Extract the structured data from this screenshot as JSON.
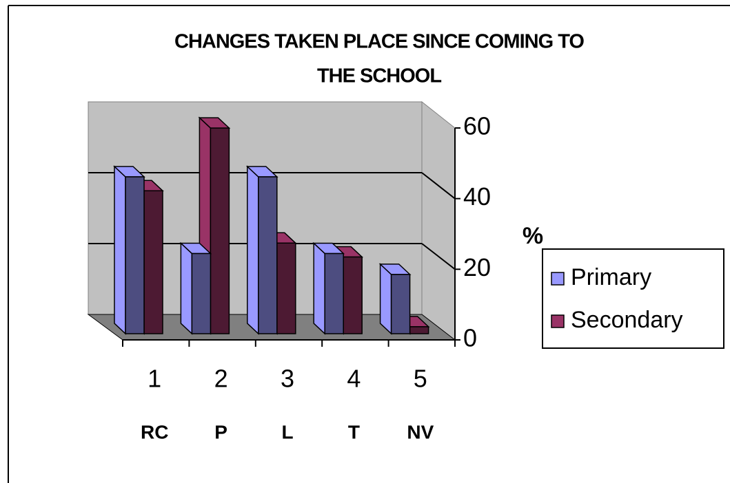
{
  "chart_data": {
    "type": "bar3d",
    "title": [
      "CHANGES TAKEN PLACE SINCE COMING TO",
      "THE SCHOOL"
    ],
    "categories": [
      "1",
      "2",
      "3",
      "4",
      "5"
    ],
    "category_labels": [
      "RC",
      "P",
      "L",
      "T",
      "NV"
    ],
    "y_label": "%",
    "ylim": [
      0,
      60
    ],
    "yticks": [
      0,
      20,
      40,
      60
    ],
    "grid": true,
    "legend": "right",
    "series": [
      {
        "name": "Primary",
        "color": "#9999ff",
        "values": [
          45,
          23,
          45,
          23,
          17
        ]
      },
      {
        "name": "Secondary",
        "color": "#993366",
        "values": [
          41,
          59,
          26,
          22,
          2
        ]
      }
    ]
  }
}
